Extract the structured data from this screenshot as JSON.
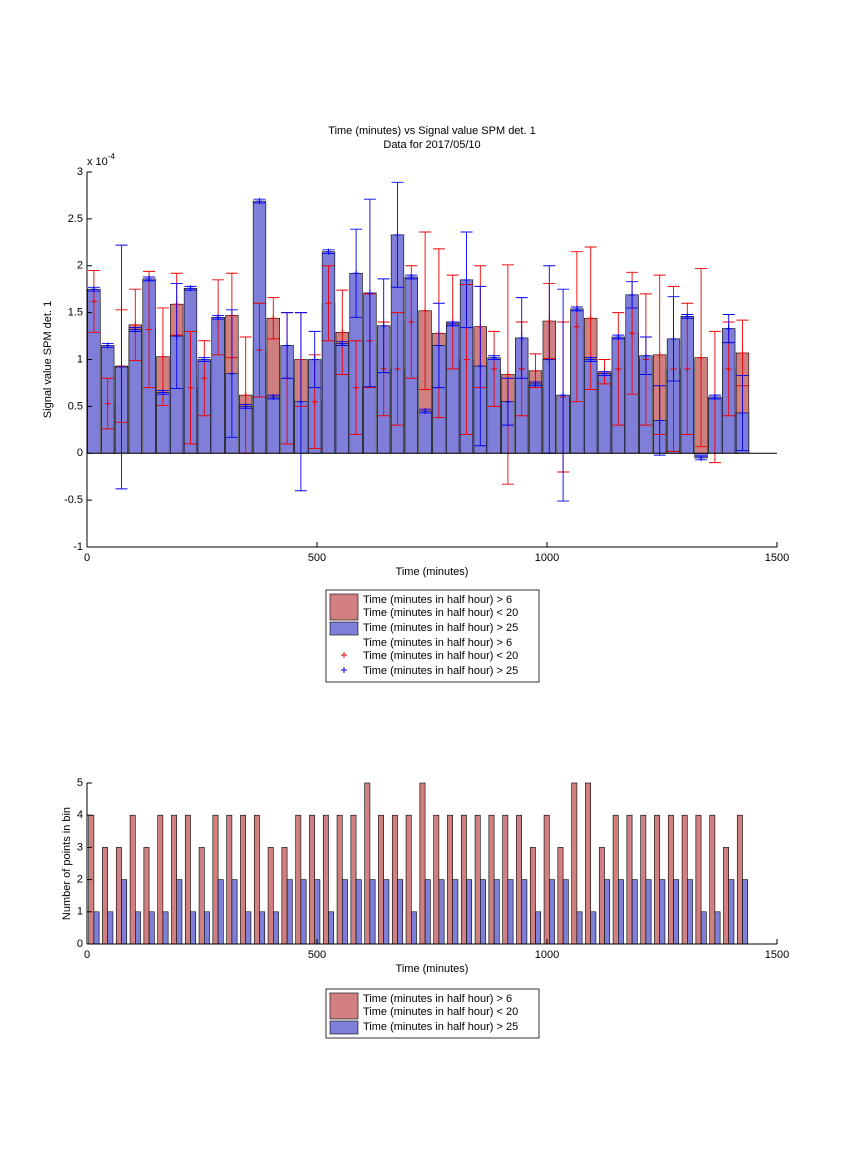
{
  "chart_data": [
    {
      "type": "bar",
      "barmode": "overlay",
      "title": [
        "Time (minutes) vs Signal value SPM det. 1",
        "Data for 2017/05/10"
      ],
      "x_label": "Time (minutes)",
      "y_label": "Signal value SPM det. 1",
      "y_multiplier": "x 10",
      "y_multiplier_exp": "-4",
      "x": [
        15,
        45,
        75,
        105,
        135,
        165,
        195,
        225,
        255,
        285,
        315,
        345,
        375,
        405,
        435,
        465,
        495,
        525,
        555,
        585,
        615,
        645,
        675,
        705,
        735,
        765,
        795,
        825,
        855,
        885,
        915,
        945,
        975,
        1005,
        1035,
        1065,
        1095,
        1125,
        1155,
        1185,
        1215,
        1245,
        1275,
        1305,
        1335,
        1365,
        1395,
        1425
      ],
      "xlim": [
        0,
        1500
      ],
      "xticks": [
        0,
        500,
        1000,
        1500
      ],
      "ylim": [
        -1,
        3
      ],
      "yticks": [
        -1,
        -0.5,
        0,
        0.5,
        1,
        1.5,
        2,
        2.5,
        3
      ],
      "series": [
        {
          "name": [
            "Time (minutes in half hour) > 6",
            "Time (minutes in half hour) < 20"
          ],
          "color": "#d08080",
          "error_color": "#ee0000",
          "values": [
            1.62,
            0.53,
            0.93,
            1.37,
            1.32,
            1.03,
            1.59,
            0.7,
            0.8,
            1.45,
            1.47,
            0.62,
            1.1,
            1.44,
            0.8,
            1.0,
            0.55,
            1.6,
            1.29,
            0.7,
            1.2,
            0.9,
            0.9,
            1.4,
            1.52,
            1.28,
            1.4,
            1.0,
            1.35,
            0.9,
            0.84,
            0.9,
            0.88,
            1.41,
            0.6,
            1.35,
            1.44,
            0.87,
            0.9,
            1.28,
            1.0,
            1.05,
            0.9,
            0.9,
            1.02,
            0.6,
            0.9,
            1.07
          ],
          "errors": [
            0.33,
            0.27,
            0.6,
            0.38,
            0.62,
            0.52,
            0.33,
            0.6,
            0.4,
            0.4,
            0.45,
            0.62,
            0.5,
            0.22,
            0.7,
            0.5,
            0.5,
            0.4,
            0.45,
            0.5,
            0.5,
            0.5,
            0.6,
            0.6,
            0.84,
            0.9,
            0.5,
            0.8,
            0.65,
            0.4,
            1.17,
            0.5,
            0.18,
            0.4,
            0.8,
            0.8,
            0.76,
            0.13,
            0.6,
            0.65,
            0.7,
            0.85,
            0.88,
            0.7,
            0.95,
            0.7,
            0.5,
            0.35
          ]
        },
        {
          "name": [
            "Time (minutes in half hour) > 25"
          ],
          "color": "#7f7fd9",
          "error_color": "#0000ee",
          "values": [
            1.75,
            1.15,
            0.92,
            1.32,
            1.86,
            0.65,
            1.25,
            1.76,
            1.0,
            1.45,
            0.85,
            0.5,
            2.69,
            0.6,
            1.15,
            0.55,
            1.0,
            2.15,
            1.17,
            1.92,
            1.71,
            1.36,
            2.33,
            1.88,
            0.45,
            1.15,
            1.38,
            1.85,
            0.93,
            1.02,
            0.55,
            1.23,
            0.74,
            1.0,
            0.62,
            1.54,
            1.0,
            0.85,
            1.24,
            1.69,
            1.04,
            0.35,
            1.22,
            1.46,
            -0.05,
            0.6,
            1.33,
            0.43
          ],
          "errors": [
            0.02,
            0.02,
            1.3,
            0.02,
            0.02,
            0.02,
            0.56,
            0.02,
            0.02,
            0.02,
            0.68,
            0.02,
            0.02,
            0.02,
            0.35,
            0.95,
            0.3,
            0.02,
            0.02,
            0.47,
            1.0,
            0.5,
            0.56,
            0.02,
            0.02,
            0.45,
            0.02,
            0.51,
            0.85,
            0.02,
            0.25,
            0.43,
            0.02,
            1.0,
            1.13,
            0.02,
            0.02,
            0.02,
            0.02,
            0.14,
            0.2,
            0.37,
            0.45,
            0.02,
            0.02,
            0.02,
            0.15,
            0.4
          ]
        }
      ]
    },
    {
      "type": "bar",
      "barmode": "group",
      "x_label": "Time (minutes)",
      "y_label": "Number of points in bin",
      "x": [
        15,
        45,
        75,
        105,
        135,
        165,
        195,
        225,
        255,
        285,
        315,
        345,
        375,
        405,
        435,
        465,
        495,
        525,
        555,
        585,
        615,
        645,
        675,
        705,
        735,
        765,
        795,
        825,
        855,
        885,
        915,
        945,
        975,
        1005,
        1035,
        1065,
        1095,
        1125,
        1155,
        1185,
        1215,
        1245,
        1275,
        1305,
        1335,
        1365,
        1395,
        1425
      ],
      "xlim": [
        0,
        1500
      ],
      "xticks": [
        0,
        500,
        1000,
        1500
      ],
      "ylim": [
        0,
        5
      ],
      "yticks": [
        0,
        1,
        2,
        3,
        4,
        5
      ],
      "series": [
        {
          "name": [
            "Time (minutes in half hour) > 6",
            "Time (minutes in half hour) < 20"
          ],
          "color": "#d08080",
          "values": [
            4,
            3,
            3,
            4,
            3,
            4,
            4,
            4,
            3,
            4,
            4,
            4,
            4,
            3,
            3,
            4,
            4,
            4,
            4,
            4,
            5,
            4,
            4,
            4,
            5,
            4,
            4,
            4,
            4,
            4,
            4,
            4,
            3,
            4,
            3,
            5,
            5,
            3,
            4,
            4,
            4,
            4,
            4,
            4,
            4,
            4,
            3,
            4
          ]
        },
        {
          "name": [
            "Time (minutes in half hour) > 25"
          ],
          "color": "#7f7fd9",
          "values": [
            1,
            1,
            2,
            1,
            1,
            1,
            2,
            1,
            1,
            2,
            2,
            1,
            1,
            1,
            2,
            2,
            2,
            1,
            2,
            2,
            2,
            2,
            2,
            1,
            2,
            2,
            2,
            2,
            2,
            2,
            2,
            2,
            1,
            2,
            2,
            1,
            1,
            2,
            2,
            2,
            2,
            2,
            2,
            2,
            1,
            1,
            2,
            2
          ]
        }
      ]
    }
  ]
}
